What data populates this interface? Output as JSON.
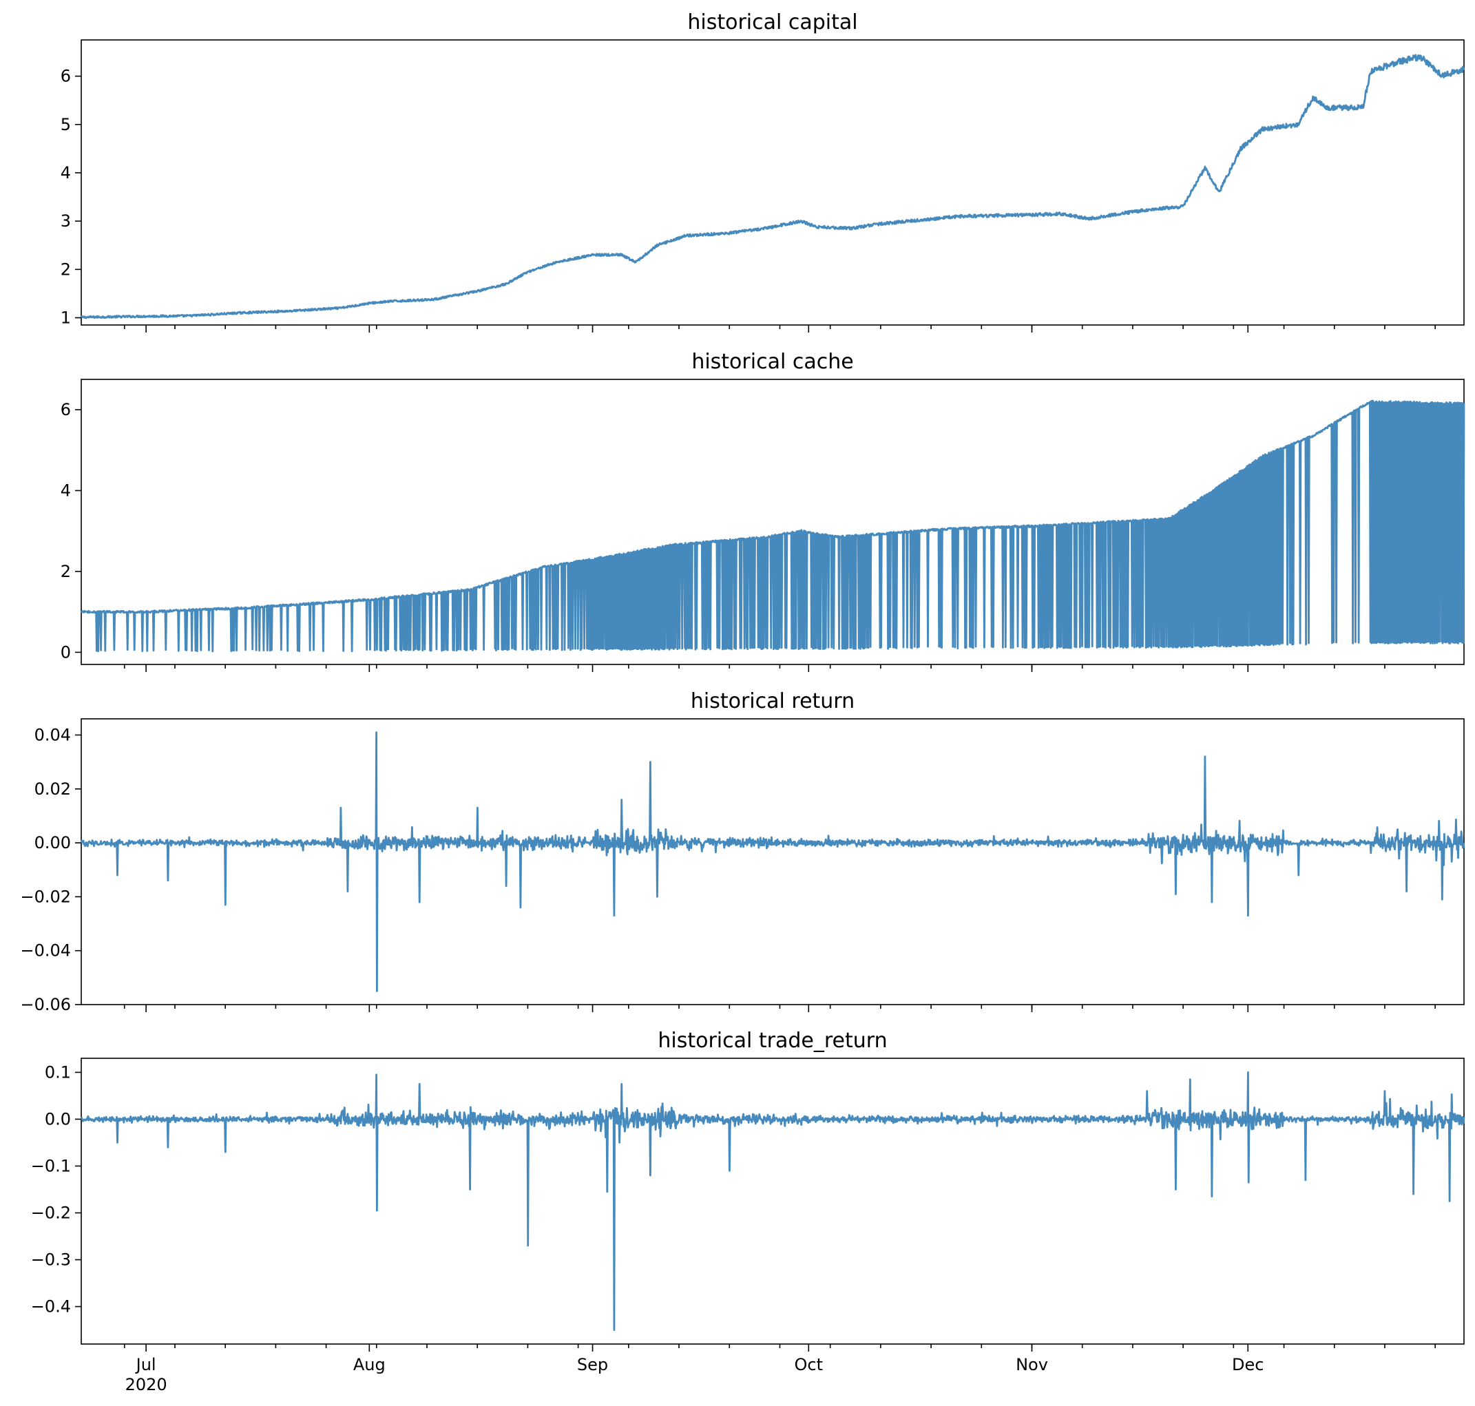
{
  "chart_data": [
    {
      "type": "line",
      "title": "historical capital",
      "xlabel": "",
      "ylabel": "",
      "xlim": [
        "2020-06-22",
        "2020-12-31"
      ],
      "ylim": [
        0.85,
        6.75
      ],
      "yticks": [
        1,
        2,
        3,
        4,
        5,
        6
      ],
      "ytick_labels": [
        "1",
        "2",
        "3",
        "4",
        "5",
        "6"
      ],
      "grid": false,
      "legend": "none",
      "series": [
        {
          "values": [
            {
              "x": "2020-06-22",
              "y": 1.01
            },
            {
              "x": "2020-07-01",
              "y": 1.03
            },
            {
              "x": "2020-07-07",
              "y": 1.04
            },
            {
              "x": "2020-07-14",
              "y": 1.1
            },
            {
              "x": "2020-07-21",
              "y": 1.14
            },
            {
              "x": "2020-07-28",
              "y": 1.2
            },
            {
              "x": "2020-08-01",
              "y": 1.3
            },
            {
              "x": "2020-08-04",
              "y": 1.34
            },
            {
              "x": "2020-08-10",
              "y": 1.38
            },
            {
              "x": "2020-08-16",
              "y": 1.55
            },
            {
              "x": "2020-08-20",
              "y": 1.7
            },
            {
              "x": "2020-08-23",
              "y": 1.95
            },
            {
              "x": "2020-08-27",
              "y": 2.15
            },
            {
              "x": "2020-09-01",
              "y": 2.3
            },
            {
              "x": "2020-09-05",
              "y": 2.3
            },
            {
              "x": "2020-09-07",
              "y": 2.15
            },
            {
              "x": "2020-09-10",
              "y": 2.5
            },
            {
              "x": "2020-09-14",
              "y": 2.7
            },
            {
              "x": "2020-09-20",
              "y": 2.75
            },
            {
              "x": "2020-09-25",
              "y": 2.85
            },
            {
              "x": "2020-09-30",
              "y": 3.0
            },
            {
              "x": "2020-10-02",
              "y": 2.88
            },
            {
              "x": "2020-10-07",
              "y": 2.85
            },
            {
              "x": "2020-10-10",
              "y": 2.93
            },
            {
              "x": "2020-10-15",
              "y": 3.0
            },
            {
              "x": "2020-10-22",
              "y": 3.1
            },
            {
              "x": "2020-10-29",
              "y": 3.12
            },
            {
              "x": "2020-11-05",
              "y": 3.15
            },
            {
              "x": "2020-11-09",
              "y": 3.05
            },
            {
              "x": "2020-11-13",
              "y": 3.15
            },
            {
              "x": "2020-11-18",
              "y": 3.25
            },
            {
              "x": "2020-11-22",
              "y": 3.3
            },
            {
              "x": "2020-11-25",
              "y": 4.1
            },
            {
              "x": "2020-11-27",
              "y": 3.6
            },
            {
              "x": "2020-11-30",
              "y": 4.5
            },
            {
              "x": "2020-12-03",
              "y": 4.9
            },
            {
              "x": "2020-12-08",
              "y": 5.0
            },
            {
              "x": "2020-12-10",
              "y": 5.55
            },
            {
              "x": "2020-12-12",
              "y": 5.35
            },
            {
              "x": "2020-12-17",
              "y": 5.35
            },
            {
              "x": "2020-12-18",
              "y": 6.1
            },
            {
              "x": "2020-12-22",
              "y": 6.3
            },
            {
              "x": "2020-12-25",
              "y": 6.4
            },
            {
              "x": "2020-12-28",
              "y": 6.0
            },
            {
              "x": "2020-12-31",
              "y": 6.15
            }
          ]
        }
      ]
    },
    {
      "type": "line",
      "title": "historical cache",
      "xlabel": "",
      "ylabel": "",
      "xlim": [
        "2020-06-22",
        "2020-12-31"
      ],
      "ylim": [
        -0.3,
        6.75
      ],
      "yticks": [
        0,
        2,
        4,
        6
      ],
      "ytick_labels": [
        "0",
        "2",
        "4",
        "6"
      ],
      "grid": false,
      "legend": "none",
      "series": [
        {
          "values": [
            {
              "x": "2020-06-22",
              "y": 1.0
            },
            {
              "x": "2020-07-01",
              "y": 1.0
            },
            {
              "x": "2020-07-15",
              "y": 1.1
            },
            {
              "x": "2020-08-01",
              "y": 1.3
            },
            {
              "x": "2020-08-15",
              "y": 1.55
            },
            {
              "x": "2020-08-25",
              "y": 2.1
            },
            {
              "x": "2020-09-01",
              "y": 2.3
            },
            {
              "x": "2020-09-12",
              "y": 2.65
            },
            {
              "x": "2020-09-25",
              "y": 2.85
            },
            {
              "x": "2020-09-30",
              "y": 3.0
            },
            {
              "x": "2020-10-05",
              "y": 2.85
            },
            {
              "x": "2020-10-20",
              "y": 3.05
            },
            {
              "x": "2020-11-01",
              "y": 3.12
            },
            {
              "x": "2020-11-20",
              "y": 3.3
            },
            {
              "x": "2020-11-27",
              "y": 4.1
            },
            {
              "x": "2020-12-03",
              "y": 4.85
            },
            {
              "x": "2020-12-10",
              "y": 5.35
            },
            {
              "x": "2020-12-18",
              "y": 6.2
            },
            {
              "x": "2020-12-31",
              "y": 6.15
            }
          ]
        },
        {
          "values": [
            {
              "x": "2020-06-22",
              "y": 0.02
            },
            {
              "x": "2020-08-01",
              "y": 0.03
            },
            {
              "x": "2020-09-01",
              "y": 0.06
            },
            {
              "x": "2020-10-01",
              "y": 0.08
            },
            {
              "x": "2020-11-01",
              "y": 0.1
            },
            {
              "x": "2020-11-24",
              "y": 0.12
            },
            {
              "x": "2020-12-05",
              "y": 0.18
            },
            {
              "x": "2020-12-18",
              "y": 0.22
            },
            {
              "x": "2020-12-31",
              "y": 0.22
            }
          ]
        }
      ]
    },
    {
      "type": "line",
      "title": "historical return",
      "xlabel": "",
      "ylabel": "",
      "xlim": [
        "2020-06-22",
        "2020-12-31"
      ],
      "ylim": [
        -0.06,
        0.046
      ],
      "yticks": [
        -0.06,
        -0.04,
        -0.02,
        0.0,
        0.02,
        0.04
      ],
      "ytick_labels": [
        "−0.06",
        "−0.04",
        "−0.02",
        "0.00",
        "0.02",
        "0.04"
      ],
      "grid": false,
      "legend": "none",
      "series": [
        {
          "values": [
            {
              "x": "2020-06-22",
              "y": 0.0
            },
            {
              "x": "2020-06-27",
              "y": -0.012
            },
            {
              "x": "2020-07-04",
              "y": -0.014
            },
            {
              "x": "2020-07-12",
              "y": -0.023
            },
            {
              "x": "2020-07-28",
              "y": 0.013
            },
            {
              "x": "2020-07-29",
              "y": -0.018
            },
            {
              "x": "2020-08-02",
              "y": 0.041
            },
            {
              "x": "2020-08-02",
              "y": -0.055
            },
            {
              "x": "2020-08-08",
              "y": -0.022
            },
            {
              "x": "2020-08-16",
              "y": 0.013
            },
            {
              "x": "2020-08-20",
              "y": -0.016
            },
            {
              "x": "2020-08-22",
              "y": -0.024
            },
            {
              "x": "2020-09-04",
              "y": -0.027
            },
            {
              "x": "2020-09-05",
              "y": 0.016
            },
            {
              "x": "2020-09-09",
              "y": 0.03
            },
            {
              "x": "2020-09-10",
              "y": -0.02
            },
            {
              "x": "2020-11-21",
              "y": -0.019
            },
            {
              "x": "2020-11-25",
              "y": 0.032
            },
            {
              "x": "2020-11-26",
              "y": -0.022
            },
            {
              "x": "2020-12-01",
              "y": -0.027
            },
            {
              "x": "2020-12-08",
              "y": -0.012
            },
            {
              "x": "2020-12-23",
              "y": -0.018
            },
            {
              "x": "2020-12-28",
              "y": -0.021
            },
            {
              "x": "2020-12-31",
              "y": 0.0
            }
          ]
        }
      ]
    },
    {
      "type": "line",
      "title": "historical trade_return",
      "xlabel": "",
      "ylabel": "",
      "xlim": [
        "2020-06-22",
        "2020-12-31"
      ],
      "xticks": [
        "2020-07-01",
        "2020-08-01",
        "2020-09-01",
        "2020-10-01",
        "2020-11-01",
        "2020-12-01"
      ],
      "xtick_labels": [
        "Jul\n2020",
        "Aug",
        "Sep",
        "Oct",
        "Nov",
        "Dec"
      ],
      "ylim": [
        -0.48,
        0.13
      ],
      "yticks": [
        -0.4,
        -0.3,
        -0.2,
        -0.1,
        0.0,
        0.1
      ],
      "ytick_labels": [
        "−0.4",
        "−0.3",
        "−0.2",
        "−0.1",
        "0.0",
        "0.1"
      ],
      "grid": false,
      "legend": "none",
      "series": [
        {
          "values": [
            {
              "x": "2020-06-22",
              "y": 0.0
            },
            {
              "x": "2020-06-27",
              "y": -0.05
            },
            {
              "x": "2020-07-04",
              "y": -0.06
            },
            {
              "x": "2020-07-12",
              "y": -0.07
            },
            {
              "x": "2020-08-02",
              "y": 0.095
            },
            {
              "x": "2020-08-02",
              "y": -0.195
            },
            {
              "x": "2020-08-08",
              "y": 0.075
            },
            {
              "x": "2020-08-15",
              "y": -0.15
            },
            {
              "x": "2020-08-23",
              "y": -0.27
            },
            {
              "x": "2020-09-03",
              "y": -0.155
            },
            {
              "x": "2020-09-04",
              "y": -0.45
            },
            {
              "x": "2020-09-05",
              "y": 0.075
            },
            {
              "x": "2020-09-09",
              "y": -0.12
            },
            {
              "x": "2020-09-20",
              "y": -0.11
            },
            {
              "x": "2020-11-17",
              "y": 0.06
            },
            {
              "x": "2020-11-21",
              "y": -0.15
            },
            {
              "x": "2020-11-23",
              "y": 0.085
            },
            {
              "x": "2020-11-26",
              "y": -0.165
            },
            {
              "x": "2020-12-01",
              "y": 0.1
            },
            {
              "x": "2020-12-01",
              "y": -0.135
            },
            {
              "x": "2020-12-09",
              "y": -0.13
            },
            {
              "x": "2020-12-20",
              "y": 0.06
            },
            {
              "x": "2020-12-24",
              "y": -0.16
            },
            {
              "x": "2020-12-29",
              "y": -0.175
            },
            {
              "x": "2020-12-31",
              "y": 0.0
            }
          ]
        }
      ]
    }
  ],
  "colors": {
    "series": "#4589bd",
    "axes": "#000000",
    "background": "#ffffff"
  }
}
